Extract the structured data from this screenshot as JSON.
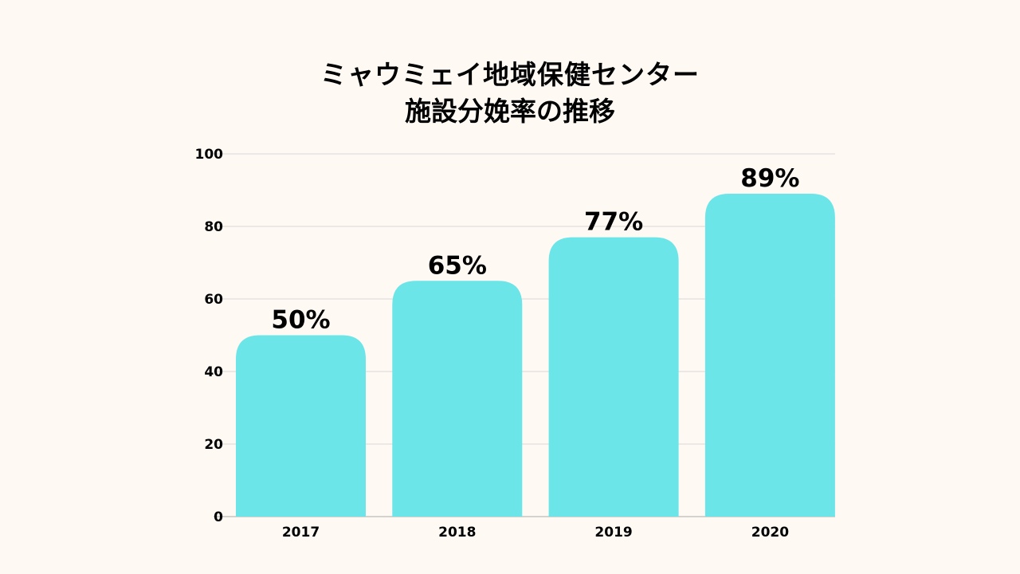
{
  "chart_data": {
    "type": "bar",
    "title": [
      "ミャウミェイ地域保健センター",
      "施設分娩率の推移"
    ],
    "categories": [
      "2017",
      "2018",
      "2019",
      "2020"
    ],
    "values": [
      50,
      65,
      77,
      89
    ],
    "data_labels": [
      "50%",
      "65%",
      "77%",
      "89%"
    ],
    "xlabel": "",
    "ylabel": "",
    "ylim": [
      0,
      100
    ],
    "yticks": [
      "0",
      "20",
      "40",
      "60",
      "80",
      "100"
    ],
    "grid": true,
    "bar_color": "#6ce5e8"
  }
}
